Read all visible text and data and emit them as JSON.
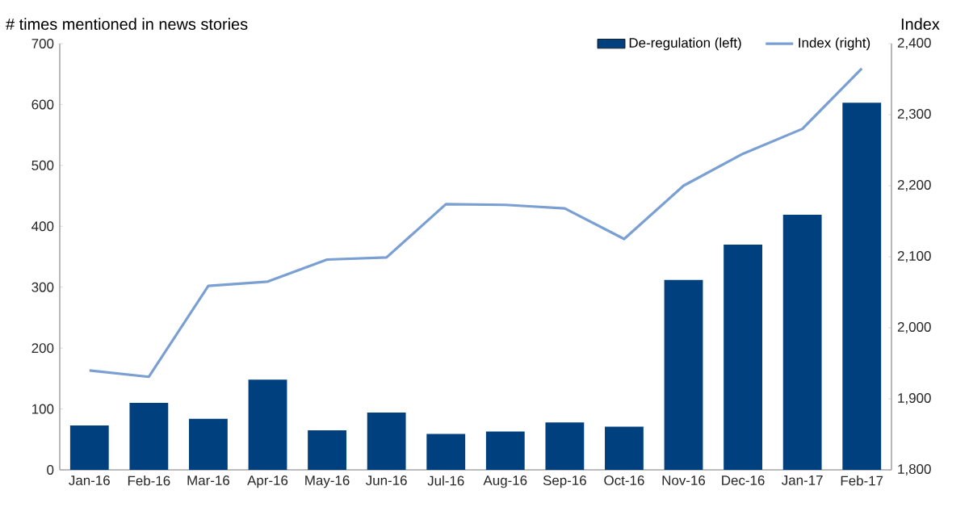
{
  "chart_data": {
    "type": "bar",
    "ylabel": "# times mentioned in news stories",
    "y2label": "Index",
    "categories": [
      "Jan-16",
      "Feb-16",
      "Mar-16",
      "Apr-16",
      "May-16",
      "Jun-16",
      "Jul-16",
      "Aug-16",
      "Sep-16",
      "Oct-16",
      "Nov-16",
      "Dec-16",
      "Jan-17",
      "Feb-17"
    ],
    "series": [
      {
        "name": "De-regulation (left)",
        "color": "#00407f",
        "values": [
          73,
          110,
          84,
          148,
          65,
          94,
          59,
          63,
          78,
          71,
          312,
          370,
          419,
          603
        ]
      },
      {
        "name": "Index (right)",
        "type": "line",
        "axis": "y2",
        "color": "#7a9fd2",
        "values": [
          1940,
          1931,
          2059,
          2065,
          2096,
          2099,
          2174,
          2173,
          2168,
          2125,
          2200,
          2245,
          2280,
          2365
        ]
      }
    ],
    "ylim": [
      0,
      700
    ],
    "yticks": [
      0,
      100,
      200,
      300,
      400,
      500,
      600,
      700
    ],
    "y2lim": [
      1800,
      2400
    ],
    "y2ticks": [
      {
        "value": 1800,
        "label": "1,800"
      },
      {
        "value": 1900,
        "label": "1,900"
      },
      {
        "value": 2000,
        "label": "2,000"
      },
      {
        "value": 2100,
        "label": "2,100"
      },
      {
        "value": 2200,
        "label": "2,200"
      },
      {
        "value": 2300,
        "label": "2,300"
      },
      {
        "value": 2400,
        "label": "2,400"
      }
    ],
    "legend": "top right"
  }
}
